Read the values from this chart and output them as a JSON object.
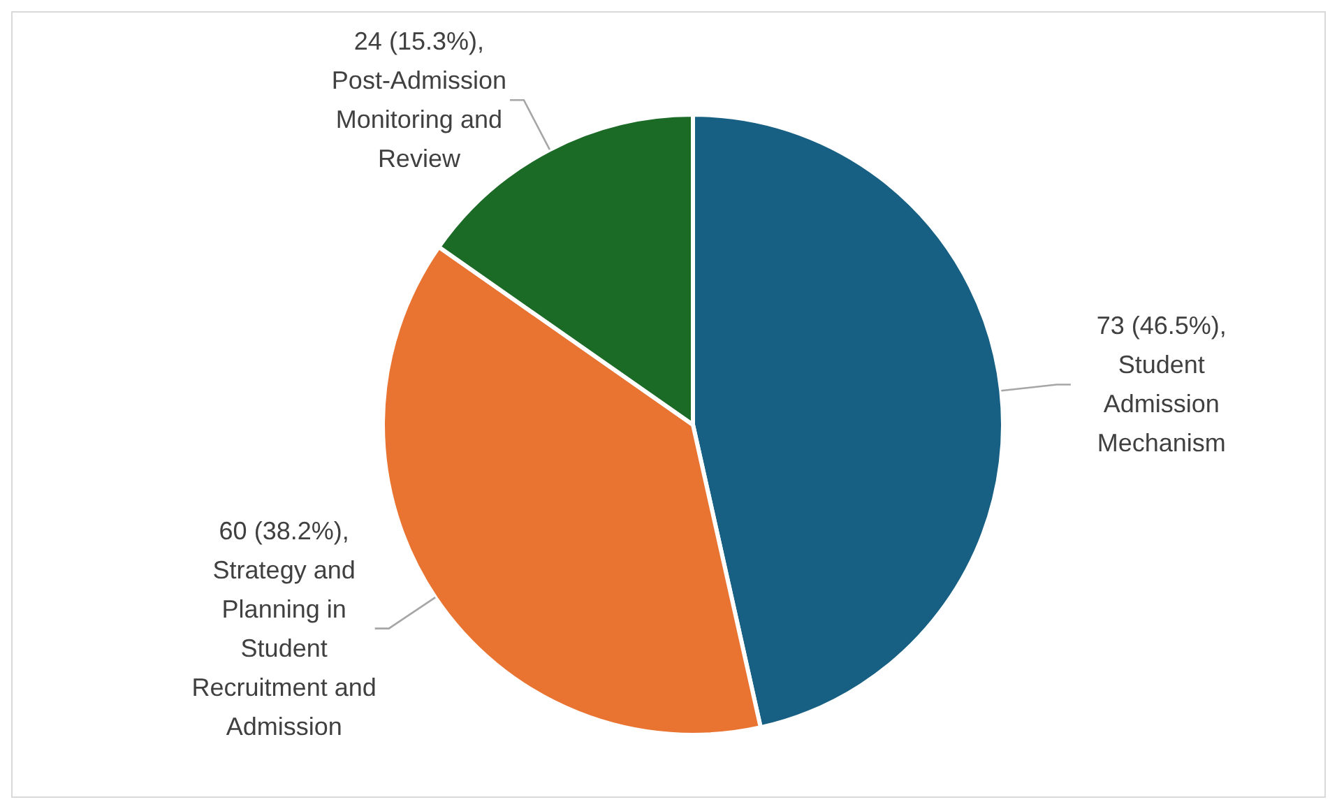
{
  "chart_data": {
    "type": "pie",
    "categories": [
      "Student Admission Mechanism",
      "Strategy and Planning in Student Recruitment and Admission",
      "Post-Admission Monitoring and Review"
    ],
    "values": [
      73,
      60,
      24
    ],
    "colors": [
      "#176083",
      "#e97432",
      "#1b6b27"
    ],
    "value_labels": [
      "73 (46.5%),",
      "60 (38.2%),",
      "24 (15.3%),"
    ]
  }
}
